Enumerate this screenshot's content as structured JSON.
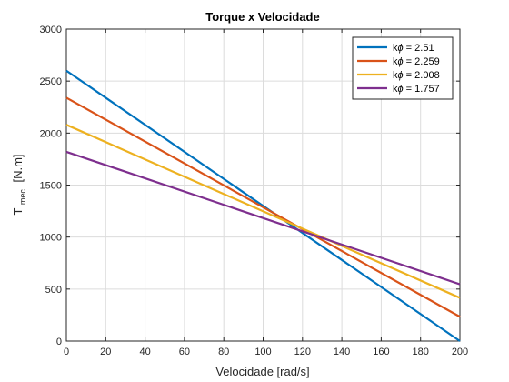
{
  "chart_data": {
    "type": "line",
    "title": "Torque x Velocidade",
    "xlabel": "Velocidade [rad/s]",
    "ylabel_main": "T",
    "ylabel_sub": "mec",
    "ylabel_unit": "[N.m]",
    "xlim": [
      0,
      200
    ],
    "ylim": [
      0,
      3000
    ],
    "xticks": [
      0,
      20,
      40,
      60,
      80,
      100,
      120,
      140,
      160,
      180,
      200
    ],
    "yticks": [
      0,
      500,
      1000,
      1500,
      2000,
      2500,
      3000
    ],
    "grid": true,
    "legend_position": "top-right",
    "series": [
      {
        "name": "kϕ = 2.51",
        "legend_prefix": "k",
        "legend_symbol": "ϕ",
        "legend_value": " = 2.51",
        "color": "#0072BD",
        "x": [
          0,
          200
        ],
        "y": [
          2600,
          0
        ]
      },
      {
        "name": "kϕ = 2.259",
        "legend_prefix": "k",
        "legend_symbol": "ϕ",
        "legend_value": " = 2.259",
        "color": "#D95319",
        "x": [
          0,
          200
        ],
        "y": [
          2340,
          234
        ]
      },
      {
        "name": "kϕ = 2.008",
        "legend_prefix": "k",
        "legend_symbol": "ϕ",
        "legend_value": " = 2.008",
        "color": "#EDB120",
        "x": [
          0,
          200
        ],
        "y": [
          2080,
          416
        ]
      },
      {
        "name": "kϕ = 1.757",
        "legend_prefix": "k",
        "legend_symbol": "ϕ",
        "legend_value": " = 1.757",
        "color": "#7E2F8E",
        "x": [
          0,
          200
        ],
        "y": [
          1820,
          546
        ]
      }
    ]
  }
}
